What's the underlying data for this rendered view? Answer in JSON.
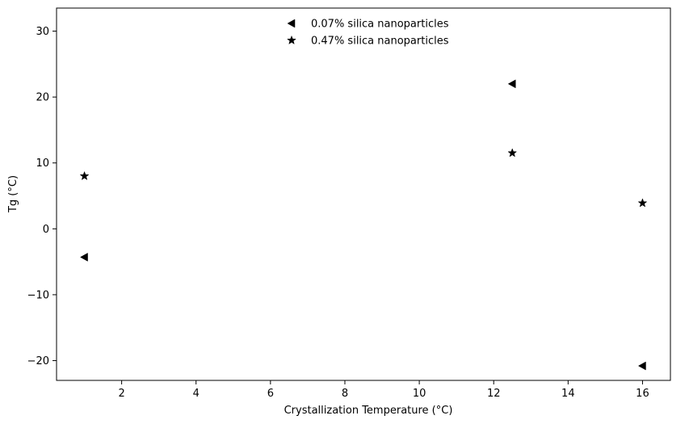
{
  "chart_data": {
    "type": "scatter",
    "title": "",
    "xlabel": "Crystallization Temperature (°C)",
    "ylabel": "Tg (°C)",
    "xlim": [
      0.25,
      16.75
    ],
    "ylim": [
      -23,
      33.5
    ],
    "xticks": [
      2,
      4,
      6,
      8,
      10,
      12,
      14,
      16
    ],
    "yticks": [
      -20,
      -10,
      0,
      10,
      20,
      30
    ],
    "xtick_labels": [
      "2",
      "4",
      "6",
      "8",
      "10",
      "12",
      "14",
      "16"
    ],
    "ytick_labels": [
      "−20",
      "−10",
      "0",
      "10",
      "20",
      "30"
    ],
    "grid": false,
    "legend_position": "top-center",
    "series": [
      {
        "name": "0.07% silica nanoparticles",
        "marker": "triangle-left",
        "color": "#000000",
        "x": [
          1,
          12.5,
          16
        ],
        "y": [
          -4.3,
          22,
          -20.8
        ]
      },
      {
        "name": "0.47% silica nanoparticles",
        "marker": "star",
        "color": "#000000",
        "x": [
          1,
          12.5,
          16
        ],
        "y": [
          8,
          11.5,
          3.9
        ]
      }
    ]
  }
}
